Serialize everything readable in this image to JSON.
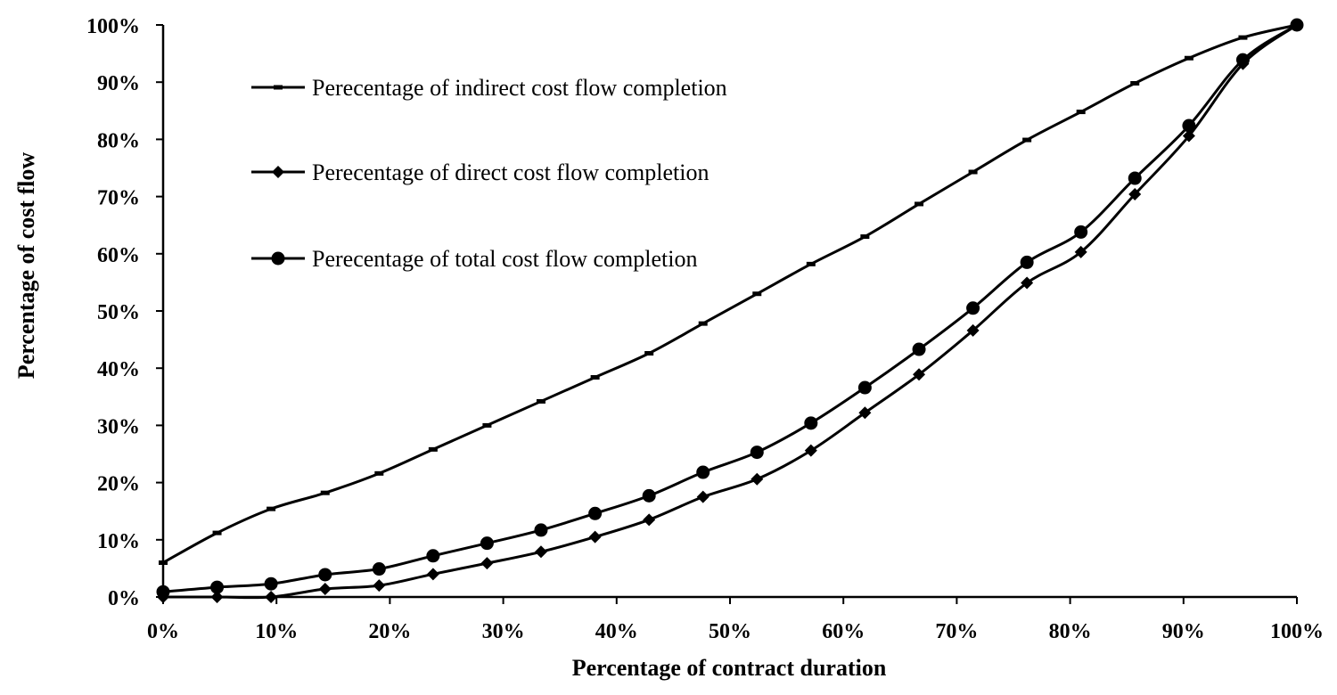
{
  "chart_data": {
    "type": "line",
    "title": "",
    "xlabel": "Percentage of contract duration",
    "ylabel": "Percentage of cost flow",
    "xlim": [
      0,
      100
    ],
    "ylim": [
      0,
      100
    ],
    "x_ticks": [
      "0%",
      "10%",
      "20%",
      "30%",
      "40%",
      "50%",
      "60%",
      "70%",
      "80%",
      "90%",
      "100%"
    ],
    "y_ticks": [
      "0%",
      "10%",
      "20%",
      "30%",
      "40%",
      "50%",
      "60%",
      "70%",
      "80%",
      "90%",
      "100%"
    ],
    "grid": false,
    "legend_position": "top-left",
    "line_color": "#000000",
    "x": [
      0,
      4.76,
      9.52,
      14.29,
      19.05,
      23.81,
      28.57,
      33.33,
      38.1,
      42.86,
      47.62,
      52.38,
      57.14,
      61.9,
      66.67,
      71.43,
      76.19,
      80.95,
      85.71,
      90.48,
      95.24,
      100
    ],
    "series": [
      {
        "name": "Perecentage of indirect cost flow completion",
        "marker": "dash",
        "values": [
          6.0,
          11.2,
          15.4,
          18.2,
          21.6,
          25.8,
          30.0,
          34.2,
          38.4,
          42.6,
          47.8,
          53.0,
          58.2,
          63.0,
          68.7,
          74.3,
          79.9,
          84.8,
          89.8,
          94.2,
          97.8,
          100
        ]
      },
      {
        "name": "Perecentage of direct cost flow completion",
        "marker": "diamond",
        "values": [
          0,
          0,
          0,
          1.4,
          2.0,
          4.0,
          5.9,
          7.9,
          10.5,
          13.5,
          17.5,
          20.6,
          25.6,
          32.2,
          38.9,
          46.6,
          54.9,
          60.3,
          70.4,
          80.6,
          93.2,
          100
        ]
      },
      {
        "name": "Perecentage of total cost flow completion",
        "marker": "circle",
        "values": [
          0.9,
          1.7,
          2.3,
          3.9,
          4.9,
          7.2,
          9.4,
          11.7,
          14.6,
          17.7,
          21.8,
          25.3,
          30.4,
          36.6,
          43.3,
          50.5,
          58.5,
          63.8,
          73.2,
          82.4,
          93.9,
          100
        ]
      }
    ]
  }
}
